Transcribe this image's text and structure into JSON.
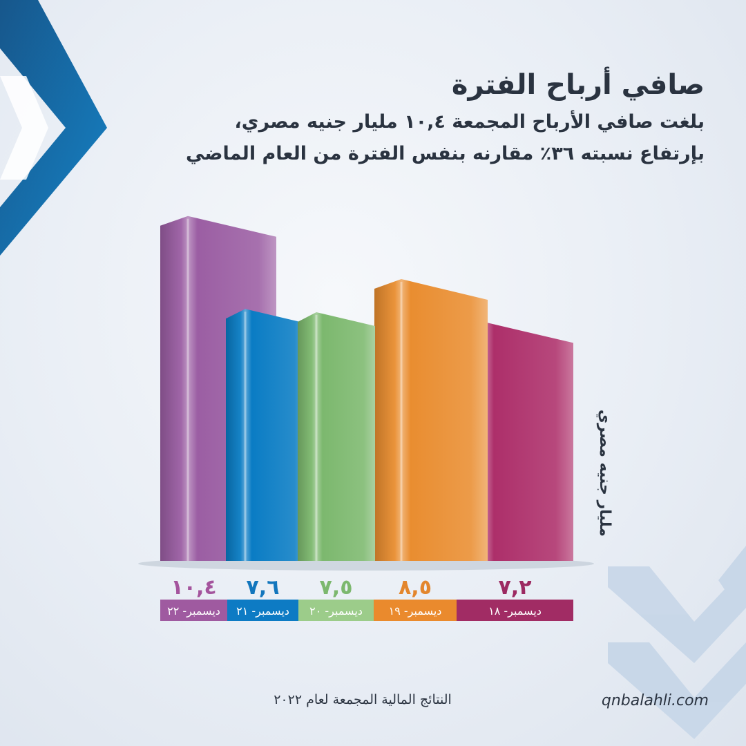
{
  "header": {
    "title": "صافي أرباح الفترة",
    "subtitle_line1": "بلغت صافي الأرباح المجمعة ١٠,٤ مليار جنيه مصري،",
    "subtitle_line2": "بإرتفاع نسبته ٣٦٪ مقارنه بنفس الفترة من العام الماضي"
  },
  "chart_data": {
    "type": "bar",
    "title": "صافي أرباح الفترة",
    "ylabel": "مليار جنيه مصري",
    "xlabel": "",
    "ylim": [
      0,
      11
    ],
    "grid": false,
    "legend": "none",
    "categories": [
      "ديسمبر- ٢٢",
      "ديسمبر- ٢١",
      "ديسمبر- ٢٠",
      "ديسمبر- ١٩",
      "ديسمبر- ١٨"
    ],
    "values": [
      10.4,
      7.6,
      7.5,
      8.5,
      7.2
    ],
    "value_labels": [
      "١٠,٤",
      "٧,٦",
      "٧,٥",
      "٨,٥",
      "٧,٢"
    ],
    "colors": [
      "#9b5ea3",
      "#0a7cc4",
      "#7cb86e",
      "#e98d30",
      "#ad2f6a"
    ],
    "label_text_colors": [
      "#a4549d",
      "#1276bd",
      "#7cb86e",
      "#e3862d",
      "#9c2a62"
    ],
    "label_band_colors": [
      "#9f5aa0",
      "#0d7bc4",
      "#9ccc8a",
      "#ea8a2d",
      "#a12c64"
    ]
  },
  "footer": {
    "results_label": "النتائج المالية المجمعة لعام ٢٠٢٢",
    "website": "qnbalahli.com"
  },
  "colors": {
    "text": "#2a3340",
    "brand_blue": "#0a6fb0",
    "decor_light_blue": "#c6d6e8"
  }
}
